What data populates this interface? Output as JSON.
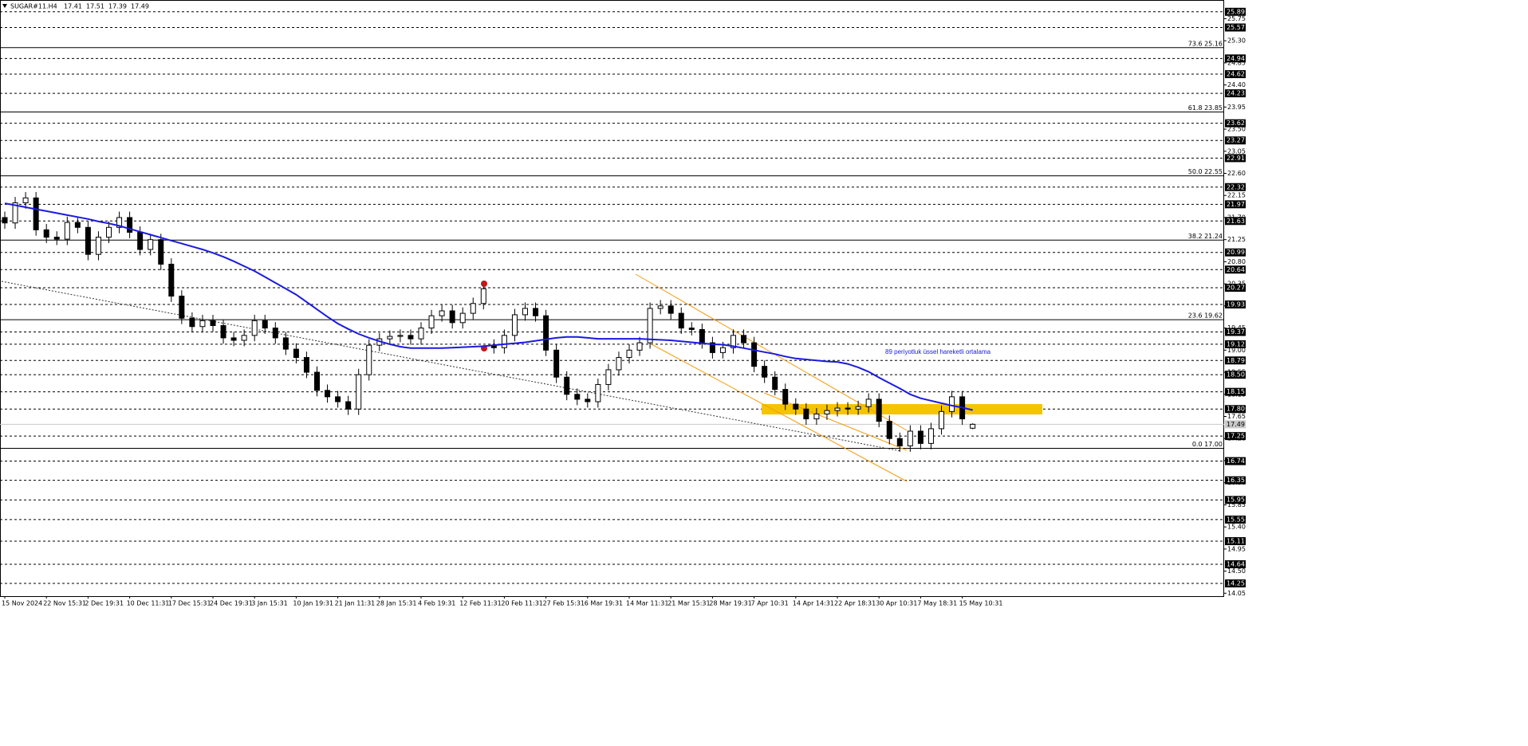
{
  "chart_data": {
    "type": "candlestick",
    "title": "SUGAR#11.H4",
    "header_values": [
      17.41,
      17.51,
      17.39,
      17.49
    ],
    "categories": [
      "15 Nov 2024",
      null,
      null,
      null,
      "22 Nov 15:31",
      null,
      null,
      null,
      "2 Dec 19:31",
      null,
      null,
      null,
      "10 Dec 11:31",
      null,
      null,
      null,
      "17 Dec 15:31",
      null,
      null,
      null,
      "24 Dec 19:31",
      null,
      null,
      null,
      "3 Jan 15:31",
      null,
      null,
      null,
      "10 Jan 19:31",
      null,
      null,
      null,
      "21 Jan 11:31",
      null,
      null,
      null,
      "28 Jan 15:31",
      null,
      null,
      null,
      "4 Feb 19:31",
      null,
      null,
      null,
      "12 Feb 11:31",
      null,
      null,
      null,
      "20 Feb 11:31",
      null,
      null,
      null,
      "27 Feb 15:31",
      null,
      null,
      null,
      "6 Mar 19:31",
      null,
      null,
      null,
      "14 Mar 11:31",
      null,
      null,
      null,
      "21 Mar 15:31",
      null,
      null,
      null,
      "28 Mar 19:31",
      null,
      null,
      null,
      "7 Apr 10:31",
      null,
      null,
      null,
      "14 Apr 14:31",
      null,
      null,
      null,
      "22 Apr 18:31",
      null,
      null,
      null,
      "30 Apr 10:31",
      null,
      null,
      null,
      "7 May 18:31",
      null,
      null,
      null,
      "15 May 10:31",
      null
    ],
    "open": [
      21.7,
      21.59,
      22.0,
      22.1,
      21.45,
      21.3,
      21.26,
      21.6,
      21.5,
      20.95,
      21.3,
      21.5,
      21.7,
      21.4,
      21.05,
      21.25,
      20.75,
      20.1,
      19.65,
      19.48,
      19.6,
      19.5,
      19.25,
      19.2,
      19.3,
      19.6,
      19.45,
      19.25,
      19.02,
      18.85,
      18.55,
      18.18,
      18.05,
      17.95,
      17.8,
      18.5,
      19.1,
      19.23,
      19.28,
      19.3,
      19.23,
      19.45,
      19.7,
      19.8,
      19.56,
      19.75,
      19.95,
      19.1,
      19.05,
      19.3,
      19.72,
      19.85,
      19.7,
      19.0,
      18.45,
      18.1,
      18.0,
      17.95,
      18.3,
      18.6,
      18.85,
      19.0,
      19.15,
      19.85,
      19.9,
      19.75,
      19.45,
      19.42,
      19.15,
      18.95,
      19.05,
      19.3,
      19.15,
      18.67,
      18.45,
      18.2,
      17.9,
      17.8,
      17.6,
      17.7,
      17.77,
      17.82,
      17.8,
      17.85,
      18.0,
      17.55,
      17.2,
      17.05,
      17.35,
      17.1,
      17.4,
      17.75,
      18.05,
      17.41
    ],
    "high": [
      21.82,
      22.12,
      22.22,
      22.22,
      21.57,
      21.42,
      21.72,
      21.72,
      21.62,
      21.42,
      21.62,
      21.82,
      21.82,
      21.52,
      21.37,
      21.37,
      20.87,
      20.22,
      19.77,
      19.72,
      19.72,
      19.62,
      19.37,
      19.42,
      19.72,
      19.72,
      19.57,
      19.37,
      19.14,
      18.97,
      18.67,
      18.3,
      18.17,
      18.07,
      18.62,
      19.22,
      19.35,
      19.4,
      19.42,
      19.42,
      19.57,
      19.82,
      19.92,
      19.92,
      19.87,
      20.07,
      20.37,
      19.22,
      19.42,
      19.84,
      19.97,
      19.97,
      19.82,
      19.12,
      18.57,
      18.22,
      18.12,
      18.42,
      18.72,
      18.97,
      19.12,
      19.27,
      19.97,
      20.02,
      20.02,
      19.87,
      19.57,
      19.54,
      19.27,
      19.17,
      19.42,
      19.42,
      19.27,
      18.79,
      18.57,
      18.32,
      18.02,
      17.92,
      17.82,
      17.89,
      17.94,
      17.94,
      17.97,
      18.12,
      18.12,
      17.67,
      17.32,
      17.47,
      17.47,
      17.52,
      17.87,
      18.17,
      18.17,
      17.51
    ],
    "low": [
      21.47,
      21.47,
      21.88,
      21.33,
      21.18,
      21.14,
      21.14,
      21.38,
      20.83,
      20.83,
      21.18,
      21.38,
      21.28,
      20.93,
      20.93,
      20.63,
      19.98,
      19.53,
      19.36,
      19.36,
      19.38,
      19.13,
      19.08,
      19.08,
      19.18,
      19.33,
      19.13,
      18.9,
      18.73,
      18.43,
      18.06,
      17.93,
      17.83,
      17.68,
      17.68,
      18.38,
      18.98,
      19.11,
      19.16,
      19.11,
      19.11,
      19.33,
      19.58,
      19.44,
      19.44,
      19.63,
      19.83,
      18.93,
      18.93,
      19.18,
      19.6,
      19.58,
      18.88,
      18.33,
      17.98,
      17.88,
      17.83,
      17.83,
      18.18,
      18.48,
      18.73,
      18.88,
      19.03,
      19.73,
      19.63,
      19.33,
      19.3,
      19.03,
      18.83,
      18.83,
      18.93,
      19.03,
      18.55,
      18.33,
      18.08,
      17.78,
      17.68,
      17.48,
      17.48,
      17.58,
      17.65,
      17.68,
      17.68,
      17.73,
      17.43,
      17.08,
      16.93,
      16.93,
      16.98,
      16.98,
      17.28,
      17.63,
      17.48,
      17.39
    ],
    "close": [
      21.59,
      22.0,
      22.1,
      21.45,
      21.3,
      21.26,
      21.6,
      21.5,
      20.95,
      21.3,
      21.5,
      21.7,
      21.4,
      21.05,
      21.25,
      20.75,
      20.1,
      19.65,
      19.48,
      19.6,
      19.5,
      19.25,
      19.2,
      19.3,
      19.6,
      19.45,
      19.25,
      19.02,
      18.85,
      18.55,
      18.18,
      18.05,
      17.95,
      17.8,
      18.5,
      19.1,
      19.23,
      19.28,
      19.3,
      19.23,
      19.45,
      19.7,
      19.8,
      19.56,
      19.75,
      19.95,
      20.25,
      19.05,
      19.3,
      19.72,
      19.85,
      19.7,
      19.0,
      18.45,
      18.1,
      18.0,
      17.95,
      18.3,
      18.6,
      18.85,
      19.0,
      19.15,
      19.85,
      19.9,
      19.75,
      19.45,
      19.42,
      19.15,
      18.95,
      19.05,
      19.3,
      19.15,
      18.67,
      18.45,
      18.2,
      17.9,
      17.8,
      17.6,
      17.7,
      17.77,
      17.82,
      17.8,
      17.85,
      18.0,
      17.55,
      17.2,
      17.05,
      17.35,
      17.1,
      17.4,
      17.75,
      18.05,
      17.6,
      17.49
    ],
    "series": [
      {
        "name": "89 periyotluk üssel hareketli ortalama",
        "color": "#1a1ae0",
        "values": [
          21.99,
          21.95,
          21.91,
          21.87,
          21.83,
          21.79,
          21.75,
          21.71,
          21.67,
          21.62,
          21.58,
          21.53,
          21.47,
          21.41,
          21.35,
          21.29,
          21.23,
          21.17,
          21.11,
          21.05,
          20.98,
          20.9,
          20.81,
          20.71,
          20.61,
          20.49,
          20.37,
          20.25,
          20.13,
          19.98,
          19.83,
          19.68,
          19.54,
          19.43,
          19.33,
          19.25,
          19.18,
          19.12,
          19.07,
          19.04,
          19.04,
          19.04,
          19.04,
          19.05,
          19.06,
          19.07,
          19.08,
          19.1,
          19.12,
          19.14,
          19.16,
          19.19,
          19.22,
          19.25,
          19.27,
          19.27,
          19.25,
          19.23,
          19.23,
          19.23,
          19.23,
          19.23,
          19.22,
          19.21,
          19.2,
          19.18,
          19.16,
          19.14,
          19.12,
          19.11,
          19.08,
          19.04,
          19.0,
          18.96,
          18.92,
          18.87,
          18.83,
          18.81,
          18.79,
          18.77,
          18.76,
          18.72,
          18.65,
          18.56,
          18.44,
          18.33,
          18.22,
          18.1,
          18.02,
          17.97,
          17.92,
          17.87,
          17.83,
          17.78
        ]
      }
    ],
    "ylim": [
      13.99,
      26.13
    ],
    "yticks": [
      25.75,
      {
        "value": 25.3,
        "label": "25.30"
      },
      24.85,
      {
        "value": 24.4,
        "label": "24.40"
      },
      23.95,
      {
        "value": 23.5,
        "label": "23.50"
      },
      23.05,
      {
        "value": 22.6,
        "label": "22.60"
      },
      22.15,
      {
        "value": 21.7,
        "label": "21.70"
      },
      21.25,
      {
        "value": 20.8,
        "label": "20.80"
      },
      20.35,
      {
        "value": 19.9,
        "label": "19.90"
      },
      19.45,
      {
        "value": 19,
        "label": "19.00"
      },
      18.55,
      {
        "value": 18.1,
        "label": "18.10"
      },
      17.65,
      {
        "value": 17.2,
        "label": "17.20"
      },
      16.75,
      {
        "value": 16.3,
        "label": "16.30"
      },
      15.85,
      {
        "value": 15.4,
        "label": "15.40"
      },
      14.95,
      {
        "value": 14.5,
        "label": "14.50"
      },
      14.05
    ],
    "levels": [
      25.89,
      25.57,
      24.94,
      24.62,
      24.23,
      23.62,
      23.27,
      22.91,
      22.32,
      21.97,
      21.63,
      20.99,
      20.64,
      20.27,
      19.93,
      19.37,
      19.12,
      18.79,
      {
        "value": 18.5,
        "label": "18.50"
      },
      18.15,
      {
        "value": 17.8,
        "label": "17.80"
      },
      17.25,
      16.74,
      16.35,
      15.95,
      15.55,
      15.11,
      14.64,
      14.25
    ],
    "fib_levels": [
      {
        "value": 25.16,
        "label": "73.6 25.16"
      },
      {
        "value": 23.85,
        "label": "61.8 23.85"
      },
      {
        "value": 22.55,
        "label": "50.0 22.55"
      },
      {
        "value": 21.24,
        "label": "38.2 21.24"
      },
      {
        "value": 19.62,
        "label": "23.6 19.62"
      },
      {
        "value": 17,
        "label": "0.0 17.00"
      }
    ],
    "last_price": 17.49
  }
}
